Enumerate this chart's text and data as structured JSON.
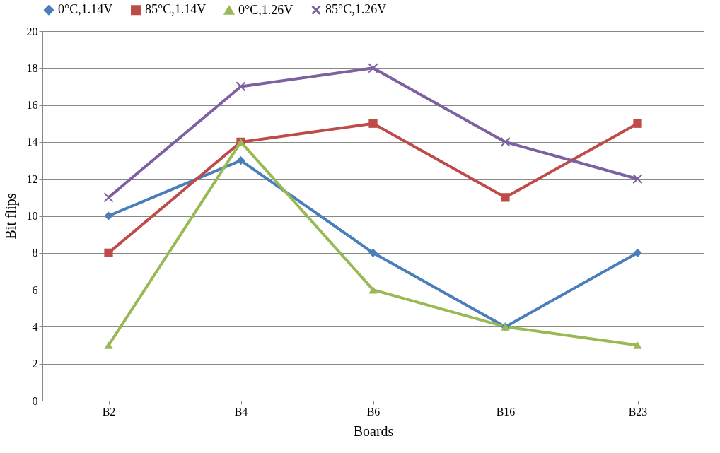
{
  "chart_data": {
    "type": "line",
    "xlabel": "Boards",
    "ylabel": "Bit flips",
    "categories": [
      "B2",
      "B4",
      "B6",
      "B16",
      "B23"
    ],
    "ylim": [
      0,
      20
    ],
    "yticks": [
      0,
      2,
      4,
      6,
      8,
      10,
      12,
      14,
      16,
      18,
      20
    ],
    "grid": "y",
    "legend": "top",
    "line_style": "solid",
    "series": [
      {
        "name": "0°C,1.14V",
        "color": "#4a7ebb",
        "marker": "diamond",
        "values": [
          10,
          13,
          8,
          4,
          8
        ]
      },
      {
        "name": "85°C,1.14V",
        "color": "#be4b48",
        "marker": "square",
        "values": [
          8,
          14,
          15,
          11,
          15
        ]
      },
      {
        "name": "0°C,1.26V",
        "color": "#98b954",
        "marker": "triangle",
        "values": [
          3,
          14,
          6,
          4,
          3
        ]
      },
      {
        "name": "85°C,1.26V",
        "color": "#7d60a0",
        "marker": "cross",
        "values": [
          11,
          17,
          18,
          14,
          12
        ]
      }
    ]
  }
}
